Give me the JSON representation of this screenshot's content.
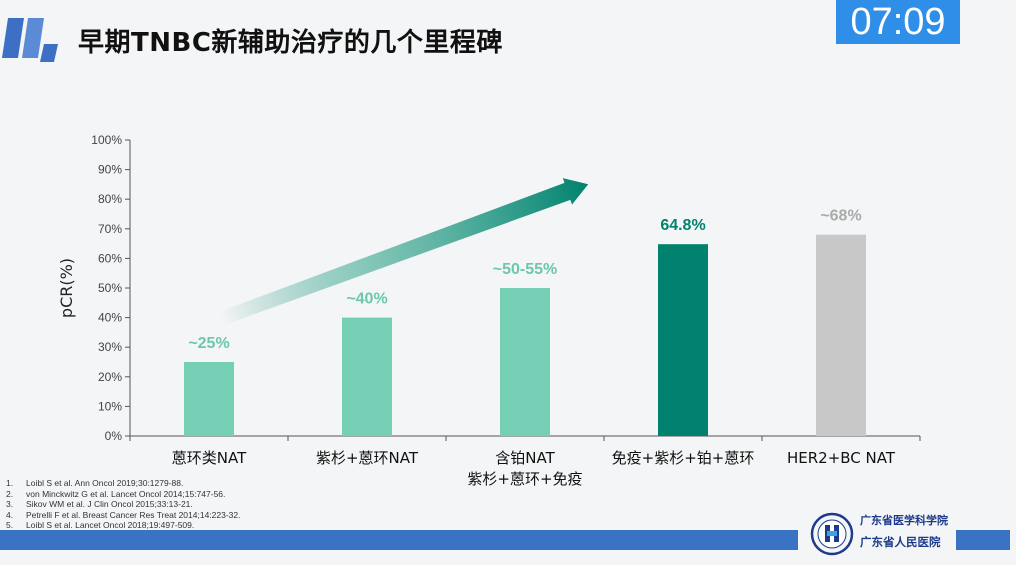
{
  "timer": "07:09",
  "title": "早期TNBC新辅助治疗的几个里程碑",
  "colors": {
    "light": "#74cfb4",
    "dark": "#00826f",
    "gray": "#c8c8c8",
    "light_label": "#6cc8ad",
    "gray_label": "#aaaaaa"
  },
  "chart_data": {
    "type": "bar",
    "ylabel": "pCR(%)",
    "ylim": [
      0,
      100
    ],
    "yticks": [
      "0%",
      "10%",
      "20%",
      "30%",
      "40%",
      "50%",
      "60%",
      "70%",
      "80%",
      "90%",
      "100%"
    ],
    "categories": [
      {
        "lines": [
          "蒽环类NAT"
        ]
      },
      {
        "lines": [
          "紫杉+蒽环NAT"
        ]
      },
      {
        "lines": [
          "含铂NAT",
          "紫杉+蒽环+免疫"
        ]
      },
      {
        "lines": [
          "免疫+紫杉+铂+蒽环"
        ]
      },
      {
        "lines": [
          "HER2+BC NAT"
        ]
      }
    ],
    "values": [
      25,
      40,
      50,
      64.8,
      68
    ],
    "data_labels": [
      "~25%",
      "~40%",
      "~50-55%",
      "64.8%",
      "~68%"
    ],
    "bar_color_keys": [
      "light",
      "light",
      "light",
      "dark",
      "gray"
    ],
    "trend_arrow": true
  },
  "references": [
    {
      "num": "1.",
      "text": "Loibl S et al. Ann Oncol 2019;30:1279-88."
    },
    {
      "num": "2.",
      "text": "von Minckwitz G et al. Lancet Oncol 2014;15:747-56."
    },
    {
      "num": "3.",
      "text": "Sikov WM et al. J Clin Oncol 2015;33:13-21."
    },
    {
      "num": "4.",
      "text": "Petrelli F et al. Breast Cancer Res Treat 2014;14:223-32."
    },
    {
      "num": "5.",
      "text": "Loibl S et al. Lancet Oncol 2018;19:497-509."
    }
  ],
  "institution": {
    "line1": "广东省医学科学院",
    "line2": "广东省人民医院"
  }
}
